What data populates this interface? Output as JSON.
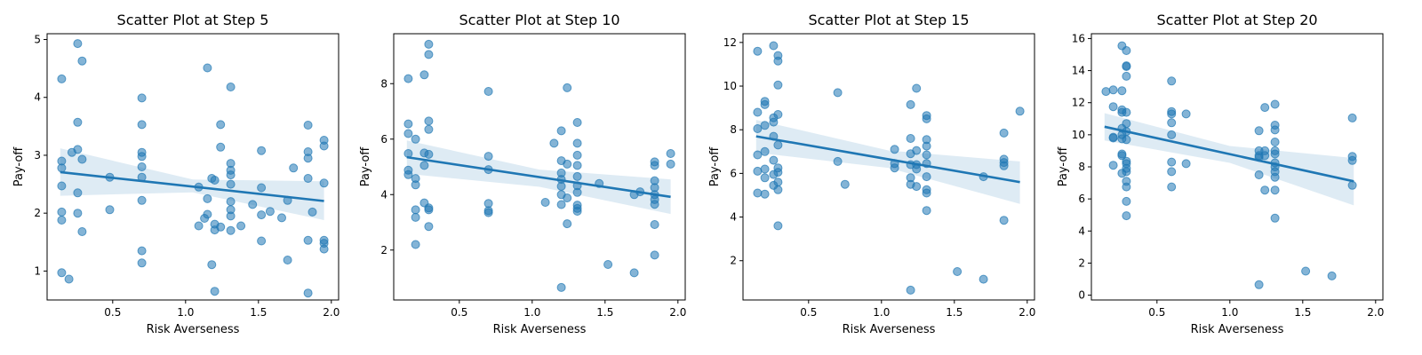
{
  "figure": {
    "point_color": "#1f77b4",
    "line_color": "#1f77b4",
    "band_color": "#1f77b4"
  },
  "chart_data": [
    {
      "type": "scatter",
      "title": "Scatter Plot at Step 5",
      "xlabel": "Risk Averseness",
      "ylabel": "Pay-off",
      "xlim": [
        0.05,
        2.05
      ],
      "ylim": [
        0.5,
        5.1
      ],
      "xticks": [
        0.5,
        1.0,
        1.5,
        2.0
      ],
      "xtick_labels": [
        "0.5",
        "1.0",
        "1.5",
        "2.0"
      ],
      "yticks": [
        1,
        2,
        3,
        4,
        5
      ],
      "ytick_labels": [
        "1",
        "2",
        "3",
        "4",
        "5"
      ],
      "grid": false,
      "points": [
        [
          0.15,
          4.32
        ],
        [
          0.15,
          2.9
        ],
        [
          0.15,
          2.78
        ],
        [
          0.15,
          2.47
        ],
        [
          0.15,
          2.02
        ],
        [
          0.15,
          1.88
        ],
        [
          0.15,
          0.97
        ],
        [
          0.2,
          0.86
        ],
        [
          0.22,
          3.05
        ],
        [
          0.26,
          4.93
        ],
        [
          0.26,
          3.57
        ],
        [
          0.26,
          3.1
        ],
        [
          0.26,
          2.35
        ],
        [
          0.26,
          2.0
        ],
        [
          0.29,
          4.63
        ],
        [
          0.29,
          2.93
        ],
        [
          0.29,
          1.68
        ],
        [
          0.48,
          2.62
        ],
        [
          0.48,
          2.06
        ],
        [
          0.7,
          3.99
        ],
        [
          0.7,
          3.53
        ],
        [
          0.7,
          3.05
        ],
        [
          0.7,
          2.98
        ],
        [
          0.7,
          2.8
        ],
        [
          0.7,
          2.62
        ],
        [
          0.7,
          2.22
        ],
        [
          0.7,
          1.35
        ],
        [
          0.7,
          1.14
        ],
        [
          1.09,
          2.45
        ],
        [
          1.09,
          1.78
        ],
        [
          1.13,
          1.91
        ],
        [
          1.15,
          4.51
        ],
        [
          1.15,
          2.25
        ],
        [
          1.15,
          1.98
        ],
        [
          1.18,
          2.6
        ],
        [
          1.18,
          1.11
        ],
        [
          1.2,
          2.57
        ],
        [
          1.2,
          1.81
        ],
        [
          1.2,
          1.71
        ],
        [
          1.2,
          0.65
        ],
        [
          1.24,
          3.53
        ],
        [
          1.24,
          3.14
        ],
        [
          1.24,
          1.76
        ],
        [
          1.31,
          4.18
        ],
        [
          1.31,
          2.86
        ],
        [
          1.31,
          2.74
        ],
        [
          1.31,
          2.66
        ],
        [
          1.31,
          2.5
        ],
        [
          1.31,
          2.2
        ],
        [
          1.31,
          2.06
        ],
        [
          1.31,
          1.95
        ],
        [
          1.31,
          1.7
        ],
        [
          1.38,
          1.78
        ],
        [
          1.46,
          2.15
        ],
        [
          1.52,
          3.08
        ],
        [
          1.52,
          2.44
        ],
        [
          1.52,
          1.97
        ],
        [
          1.52,
          1.52
        ],
        [
          1.58,
          2.03
        ],
        [
          1.66,
          1.92
        ],
        [
          1.7,
          2.22
        ],
        [
          1.7,
          1.19
        ],
        [
          1.74,
          2.78
        ],
        [
          1.84,
          3.52
        ],
        [
          1.84,
          3.06
        ],
        [
          1.84,
          2.95
        ],
        [
          1.84,
          2.6
        ],
        [
          1.84,
          1.53
        ],
        [
          1.84,
          0.62
        ],
        [
          1.87,
          2.02
        ],
        [
          1.95,
          3.26
        ],
        [
          1.95,
          3.16
        ],
        [
          1.95,
          2.52
        ],
        [
          1.95,
          1.53
        ],
        [
          1.95,
          1.48
        ],
        [
          1.95,
          1.38
        ]
      ],
      "regression": {
        "x": [
          0.14,
          1.95
        ],
        "y": [
          2.71,
          2.21
        ],
        "ci_lower": [
          2.3,
          1.88
        ],
        "ci_upper": [
          3.12,
          2.55
        ],
        "ci_mid_x": 1.05,
        "ci_mid_lower": [
          2.36
        ],
        "ci_mid_upper": [
          2.58
        ]
      }
    },
    {
      "type": "scatter",
      "title": "Scatter Plot at Step 10",
      "xlabel": "Risk Averseness",
      "ylabel": "Pay-off",
      "xlim": [
        0.05,
        2.05
      ],
      "ylim": [
        0.2,
        9.8
      ],
      "xticks": [
        0.5,
        1.0,
        1.5,
        2.0
      ],
      "xtick_labels": [
        "0.5",
        "1.0",
        "1.5",
        "2.0"
      ],
      "yticks": [
        2,
        4,
        6,
        8
      ],
      "ytick_labels": [
        "2",
        "4",
        "6",
        "8"
      ],
      "grid": false,
      "points": [
        [
          0.15,
          8.18
        ],
        [
          0.15,
          6.55
        ],
        [
          0.15,
          6.2
        ],
        [
          0.15,
          5.48
        ],
        [
          0.15,
          4.88
        ],
        [
          0.15,
          4.72
        ],
        [
          0.2,
          6.0
        ],
        [
          0.2,
          4.58
        ],
        [
          0.2,
          4.35
        ],
        [
          0.2,
          3.45
        ],
        [
          0.2,
          3.18
        ],
        [
          0.2,
          2.2
        ],
        [
          0.26,
          8.32
        ],
        [
          0.26,
          5.5
        ],
        [
          0.26,
          5.05
        ],
        [
          0.26,
          3.7
        ],
        [
          0.29,
          9.42
        ],
        [
          0.29,
          9.05
        ],
        [
          0.29,
          6.65
        ],
        [
          0.29,
          6.35
        ],
        [
          0.29,
          5.45
        ],
        [
          0.29,
          3.52
        ],
        [
          0.29,
          3.45
        ],
        [
          0.29,
          2.85
        ],
        [
          0.7,
          7.72
        ],
        [
          0.7,
          5.38
        ],
        [
          0.7,
          4.9
        ],
        [
          0.7,
          3.68
        ],
        [
          0.7,
          3.42
        ],
        [
          0.7,
          3.35
        ],
        [
          1.09,
          3.72
        ],
        [
          1.15,
          5.85
        ],
        [
          1.2,
          6.3
        ],
        [
          1.2,
          5.22
        ],
        [
          1.2,
          4.78
        ],
        [
          1.2,
          4.55
        ],
        [
          1.2,
          4.3
        ],
        [
          1.2,
          4.0
        ],
        [
          1.2,
          3.64
        ],
        [
          1.2,
          0.65
        ],
        [
          1.24,
          7.85
        ],
        [
          1.24,
          5.1
        ],
        [
          1.24,
          3.88
        ],
        [
          1.24,
          2.95
        ],
        [
          1.31,
          6.6
        ],
        [
          1.31,
          5.85
        ],
        [
          1.31,
          5.42
        ],
        [
          1.31,
          5.05
        ],
        [
          1.31,
          4.65
        ],
        [
          1.31,
          4.32
        ],
        [
          1.31,
          4.08
        ],
        [
          1.31,
          3.62
        ],
        [
          1.31,
          3.5
        ],
        [
          1.31,
          3.4
        ],
        [
          1.46,
          4.4
        ],
        [
          1.52,
          1.48
        ],
        [
          1.7,
          1.18
        ],
        [
          1.7,
          4.0
        ],
        [
          1.74,
          4.1
        ],
        [
          1.84,
          5.18
        ],
        [
          1.84,
          5.05
        ],
        [
          1.84,
          4.5
        ],
        [
          1.84,
          4.25
        ],
        [
          1.84,
          4.0
        ],
        [
          1.84,
          3.82
        ],
        [
          1.84,
          3.65
        ],
        [
          1.84,
          2.92
        ],
        [
          1.84,
          1.82
        ],
        [
          1.95,
          5.48
        ],
        [
          1.95,
          5.1
        ]
      ],
      "regression": {
        "x": [
          0.14,
          1.95
        ],
        "y": [
          5.35,
          3.92
        ],
        "ci_lower": [
          4.75,
          3.3
        ],
        "ci_upper": [
          5.95,
          4.55
        ],
        "ci_mid_x": 1.05,
        "ci_mid_lower": [
          4.28
        ],
        "ci_mid_upper": [
          4.9
        ]
      }
    },
    {
      "type": "scatter",
      "title": "Scatter Plot at Step 15",
      "xlabel": "Risk Averseness",
      "ylabel": "Pay-off",
      "xlim": [
        0.05,
        2.05
      ],
      "ylim": [
        0.2,
        12.4
      ],
      "xticks": [
        0.5,
        1.0,
        1.5,
        2.0
      ],
      "xtick_labels": [
        "0.5",
        "1.0",
        "1.5",
        "2.0"
      ],
      "yticks": [
        2,
        4,
        6,
        8,
        10,
        12
      ],
      "ytick_labels": [
        "2",
        "4",
        "6",
        "8",
        "10",
        "12"
      ],
      "grid": false,
      "points": [
        [
          0.15,
          11.6
        ],
        [
          0.15,
          8.8
        ],
        [
          0.15,
          8.05
        ],
        [
          0.15,
          6.85
        ],
        [
          0.15,
          6.1
        ],
        [
          0.15,
          5.1
        ],
        [
          0.2,
          9.3
        ],
        [
          0.2,
          9.15
        ],
        [
          0.2,
          8.2
        ],
        [
          0.2,
          7.0
        ],
        [
          0.2,
          6.2
        ],
        [
          0.2,
          5.8
        ],
        [
          0.2,
          5.05
        ],
        [
          0.26,
          11.85
        ],
        [
          0.26,
          8.55
        ],
        [
          0.26,
          8.35
        ],
        [
          0.26,
          7.7
        ],
        [
          0.26,
          6.6
        ],
        [
          0.26,
          5.95
        ],
        [
          0.26,
          5.45
        ],
        [
          0.29,
          11.4
        ],
        [
          0.29,
          11.15
        ],
        [
          0.29,
          10.05
        ],
        [
          0.29,
          8.7
        ],
        [
          0.29,
          7.3
        ],
        [
          0.29,
          6.25
        ],
        [
          0.29,
          6.05
        ],
        [
          0.29,
          5.6
        ],
        [
          0.29,
          5.25
        ],
        [
          0.29,
          3.6
        ],
        [
          0.7,
          9.7
        ],
        [
          0.7,
          6.55
        ],
        [
          0.75,
          5.5
        ],
        [
          1.09,
          7.1
        ],
        [
          1.09,
          6.45
        ],
        [
          1.09,
          6.25
        ],
        [
          1.2,
          9.15
        ],
        [
          1.2,
          7.6
        ],
        [
          1.2,
          6.9
        ],
        [
          1.2,
          6.4
        ],
        [
          1.2,
          5.8
        ],
        [
          1.2,
          5.5
        ],
        [
          1.2,
          0.65
        ],
        [
          1.24,
          9.9
        ],
        [
          1.24,
          7.05
        ],
        [
          1.24,
          6.4
        ],
        [
          1.24,
          6.2
        ],
        [
          1.24,
          5.4
        ],
        [
          1.31,
          8.65
        ],
        [
          1.31,
          8.5
        ],
        [
          1.31,
          7.55
        ],
        [
          1.31,
          7.25
        ],
        [
          1.31,
          6.85
        ],
        [
          1.31,
          6.45
        ],
        [
          1.31,
          5.85
        ],
        [
          1.31,
          5.25
        ],
        [
          1.31,
          5.1
        ],
        [
          1.31,
          4.3
        ],
        [
          1.52,
          1.5
        ],
        [
          1.7,
          1.15
        ],
        [
          1.7,
          5.85
        ],
        [
          1.84,
          7.85
        ],
        [
          1.84,
          6.65
        ],
        [
          1.84,
          6.5
        ],
        [
          1.84,
          6.35
        ],
        [
          1.84,
          3.85
        ],
        [
          1.95,
          8.85
        ]
      ],
      "regression": {
        "x": [
          0.14,
          1.95
        ],
        "y": [
          7.7,
          5.6
        ],
        "ci_lower": [
          6.95,
          4.6
        ],
        "ci_upper": [
          8.45,
          6.55
        ],
        "ci_mid_x": 1.05,
        "ci_mid_lower": [
          6.25
        ],
        "ci_mid_upper": [
          7.05
        ]
      }
    },
    {
      "type": "scatter",
      "title": "Scatter Plot at Step 20",
      "xlabel": "Risk Averseness",
      "ylabel": "Pay-off",
      "xlim": [
        0.05,
        2.05
      ],
      "ylim": [
        -0.3,
        16.3
      ],
      "xticks": [
        0.5,
        1.0,
        1.5,
        2.0
      ],
      "xtick_labels": [
        "0.5",
        "1.0",
        "1.5",
        "2.0"
      ],
      "yticks": [
        0,
        2,
        4,
        6,
        8,
        10,
        12,
        14,
        16
      ],
      "ytick_labels": [
        "0",
        "2",
        "4",
        "6",
        "8",
        "10",
        "12",
        "14",
        "16"
      ],
      "grid": false,
      "points": [
        [
          0.15,
          12.7
        ],
        [
          0.2,
          12.8
        ],
        [
          0.2,
          11.75
        ],
        [
          0.2,
          9.85
        ],
        [
          0.2,
          9.8
        ],
        [
          0.2,
          8.1
        ],
        [
          0.26,
          15.55
        ],
        [
          0.26,
          12.75
        ],
        [
          0.26,
          11.55
        ],
        [
          0.26,
          11.4
        ],
        [
          0.26,
          10.4
        ],
        [
          0.26,
          10.0
        ],
        [
          0.26,
          9.75
        ],
        [
          0.26,
          8.8
        ],
        [
          0.26,
          8.7
        ],
        [
          0.26,
          7.6
        ],
        [
          0.29,
          15.25
        ],
        [
          0.29,
          14.3
        ],
        [
          0.29,
          14.25
        ],
        [
          0.29,
          13.65
        ],
        [
          0.29,
          11.4
        ],
        [
          0.29,
          10.7
        ],
        [
          0.29,
          10.2
        ],
        [
          0.29,
          9.7
        ],
        [
          0.29,
          8.35
        ],
        [
          0.29,
          8.2
        ],
        [
          0.29,
          7.9
        ],
        [
          0.29,
          7.7
        ],
        [
          0.29,
          7.1
        ],
        [
          0.29,
          6.75
        ],
        [
          0.29,
          5.85
        ],
        [
          0.29,
          4.95
        ],
        [
          0.6,
          13.35
        ],
        [
          0.6,
          11.45
        ],
        [
          0.6,
          11.3
        ],
        [
          0.6,
          10.75
        ],
        [
          0.6,
          10.0
        ],
        [
          0.6,
          8.3
        ],
        [
          0.6,
          7.7
        ],
        [
          0.6,
          6.75
        ],
        [
          0.7,
          11.3
        ],
        [
          0.7,
          8.2
        ],
        [
          1.2,
          10.25
        ],
        [
          1.2,
          9.0
        ],
        [
          1.2,
          8.7
        ],
        [
          1.2,
          8.6
        ],
        [
          1.2,
          7.5
        ],
        [
          1.2,
          0.65
        ],
        [
          1.24,
          11.7
        ],
        [
          1.24,
          9.0
        ],
        [
          1.24,
          8.7
        ],
        [
          1.24,
          6.55
        ],
        [
          1.31,
          11.9
        ],
        [
          1.31,
          10.6
        ],
        [
          1.31,
          10.3
        ],
        [
          1.31,
          9.55
        ],
        [
          1.31,
          9.0
        ],
        [
          1.31,
          8.8
        ],
        [
          1.31,
          8.25
        ],
        [
          1.31,
          8.0
        ],
        [
          1.31,
          7.7
        ],
        [
          1.31,
          7.35
        ],
        [
          1.31,
          6.55
        ],
        [
          1.31,
          4.8
        ],
        [
          1.52,
          1.5
        ],
        [
          1.7,
          1.2
        ],
        [
          1.84,
          11.05
        ],
        [
          1.84,
          8.65
        ],
        [
          1.84,
          8.4
        ],
        [
          1.84,
          6.85
        ]
      ],
      "regression": {
        "x": [
          0.14,
          1.85
        ],
        "y": [
          10.5,
          7.1
        ],
        "ci_lower": [
          9.65,
          5.6
        ],
        "ci_upper": [
          11.35,
          8.55
        ],
        "ci_mid_x": 1.0,
        "ci_mid_lower": [
          8.25
        ],
        "ci_mid_upper": [
          9.3
        ]
      }
    }
  ]
}
